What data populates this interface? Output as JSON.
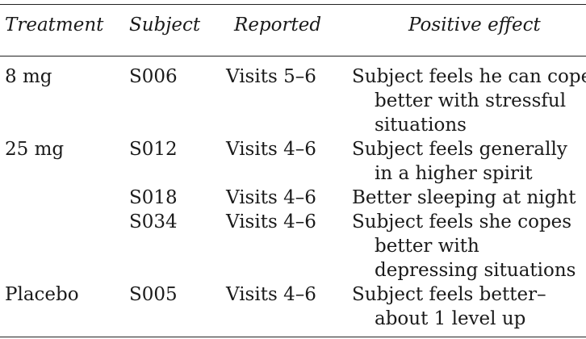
{
  "headers": {
    "treatment": "Treatment",
    "subject": "Subject",
    "reported": "Reported",
    "positive": "Positive effect"
  },
  "rows": [
    {
      "treatment": "8 mg",
      "subject": "S006",
      "reported": "Visits 5–6",
      "effect_lines": [
        "Subject feels he can cope",
        "better with stressful",
        "situations"
      ]
    },
    {
      "treatment": "25 mg",
      "subject": "S012",
      "reported": "Visits 4–6",
      "effect_lines": [
        "Subject feels generally",
        "in a higher spirit"
      ]
    },
    {
      "treatment": "",
      "subject": "S018",
      "reported": "Visits 4–6",
      "effect_lines": [
        "Better sleeping at night"
      ]
    },
    {
      "treatment": "",
      "subject": "S034",
      "reported": "Visits 4–6",
      "effect_lines": [
        "Subject feels she copes",
        "better with",
        "depressing situations"
      ]
    },
    {
      "treatment": "Placebo",
      "subject": "S005",
      "reported": "Visits 4–6",
      "effect_lines": [
        "Subject feels better–",
        "about 1 level up"
      ]
    }
  ]
}
